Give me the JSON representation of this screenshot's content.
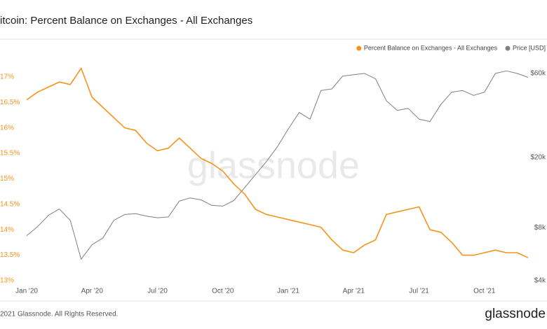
{
  "chart_data": {
    "type": "line",
    "title": "itcoin: Percent Balance on Exchanges - All Exchanges",
    "watermark": "glassnode",
    "footer": "2021 Glassnode. All Rights Reserved.",
    "logo": "glassnode",
    "legend": "top-right",
    "categories": [
      "Jan '20",
      null,
      null,
      null,
      null,
      null,
      "Apr '20",
      null,
      null,
      null,
      null,
      null,
      "Jul '20",
      null,
      null,
      null,
      null,
      null,
      "Oct '20",
      null,
      null,
      null,
      null,
      null,
      "Jan '21",
      null,
      null,
      null,
      null,
      null,
      "Apr '21",
      null,
      null,
      null,
      null,
      null,
      "Jul '21",
      null,
      null,
      null,
      null,
      null,
      "Oct '21",
      null,
      null,
      null,
      null
    ],
    "ylim": [
      13,
      17.3
    ],
    "yticks": [
      {
        "value": 13,
        "label": "13%"
      },
      {
        "value": 13.5,
        "label": "13.5%"
      },
      {
        "value": 14,
        "label": "14%"
      },
      {
        "value": 14.5,
        "label": "14.5%"
      },
      {
        "value": 15,
        "label": "15%"
      },
      {
        "value": 15.5,
        "label": "15.5%"
      },
      {
        "value": 16,
        "label": "16%"
      },
      {
        "value": 16.5,
        "label": "16.5%"
      },
      {
        "value": 17,
        "label": "17%"
      }
    ],
    "y2lim": [
      4000,
      70000
    ],
    "y2scale": "log",
    "y2ticks": [
      {
        "value": 4000,
        "label": "$4k"
      },
      {
        "value": 8000,
        "label": "$8k"
      },
      {
        "value": 20000,
        "label": "$20k"
      },
      {
        "value": 60000,
        "label": "$60k"
      }
    ],
    "series": [
      {
        "name": "Percent Balance on Exchanges - All Exchanges",
        "color": "#f7931a",
        "axis": "y",
        "values": [
          16.55,
          16.7,
          16.8,
          16.9,
          16.85,
          17.17,
          16.6,
          16.4,
          16.2,
          16.0,
          15.95,
          15.7,
          15.55,
          15.6,
          15.8,
          15.6,
          15.4,
          15.3,
          15.15,
          14.9,
          14.7,
          14.4,
          14.3,
          14.25,
          14.2,
          14.15,
          14.1,
          14.05,
          13.8,
          13.6,
          13.55,
          13.7,
          13.8,
          14.3,
          14.35,
          14.4,
          14.45,
          14.0,
          13.95,
          13.75,
          13.5,
          13.5,
          13.55,
          13.6,
          13.55,
          13.55,
          13.45
        ]
      },
      {
        "name": "Price [USD]",
        "color": "#808080",
        "axis": "y2",
        "values": [
          7200,
          8100,
          9400,
          10200,
          8800,
          5300,
          6400,
          7000,
          8800,
          9500,
          9600,
          9300,
          9100,
          9200,
          11300,
          11800,
          11500,
          10700,
          10600,
          11400,
          13500,
          16000,
          19000,
          23000,
          29000,
          36000,
          33000,
          48000,
          49000,
          58000,
          59000,
          60000,
          56000,
          42000,
          37000,
          38000,
          33000,
          32000,
          40000,
          47000,
          48000,
          45000,
          47000,
          60000,
          62000,
          60000,
          57000
        ]
      }
    ]
  }
}
